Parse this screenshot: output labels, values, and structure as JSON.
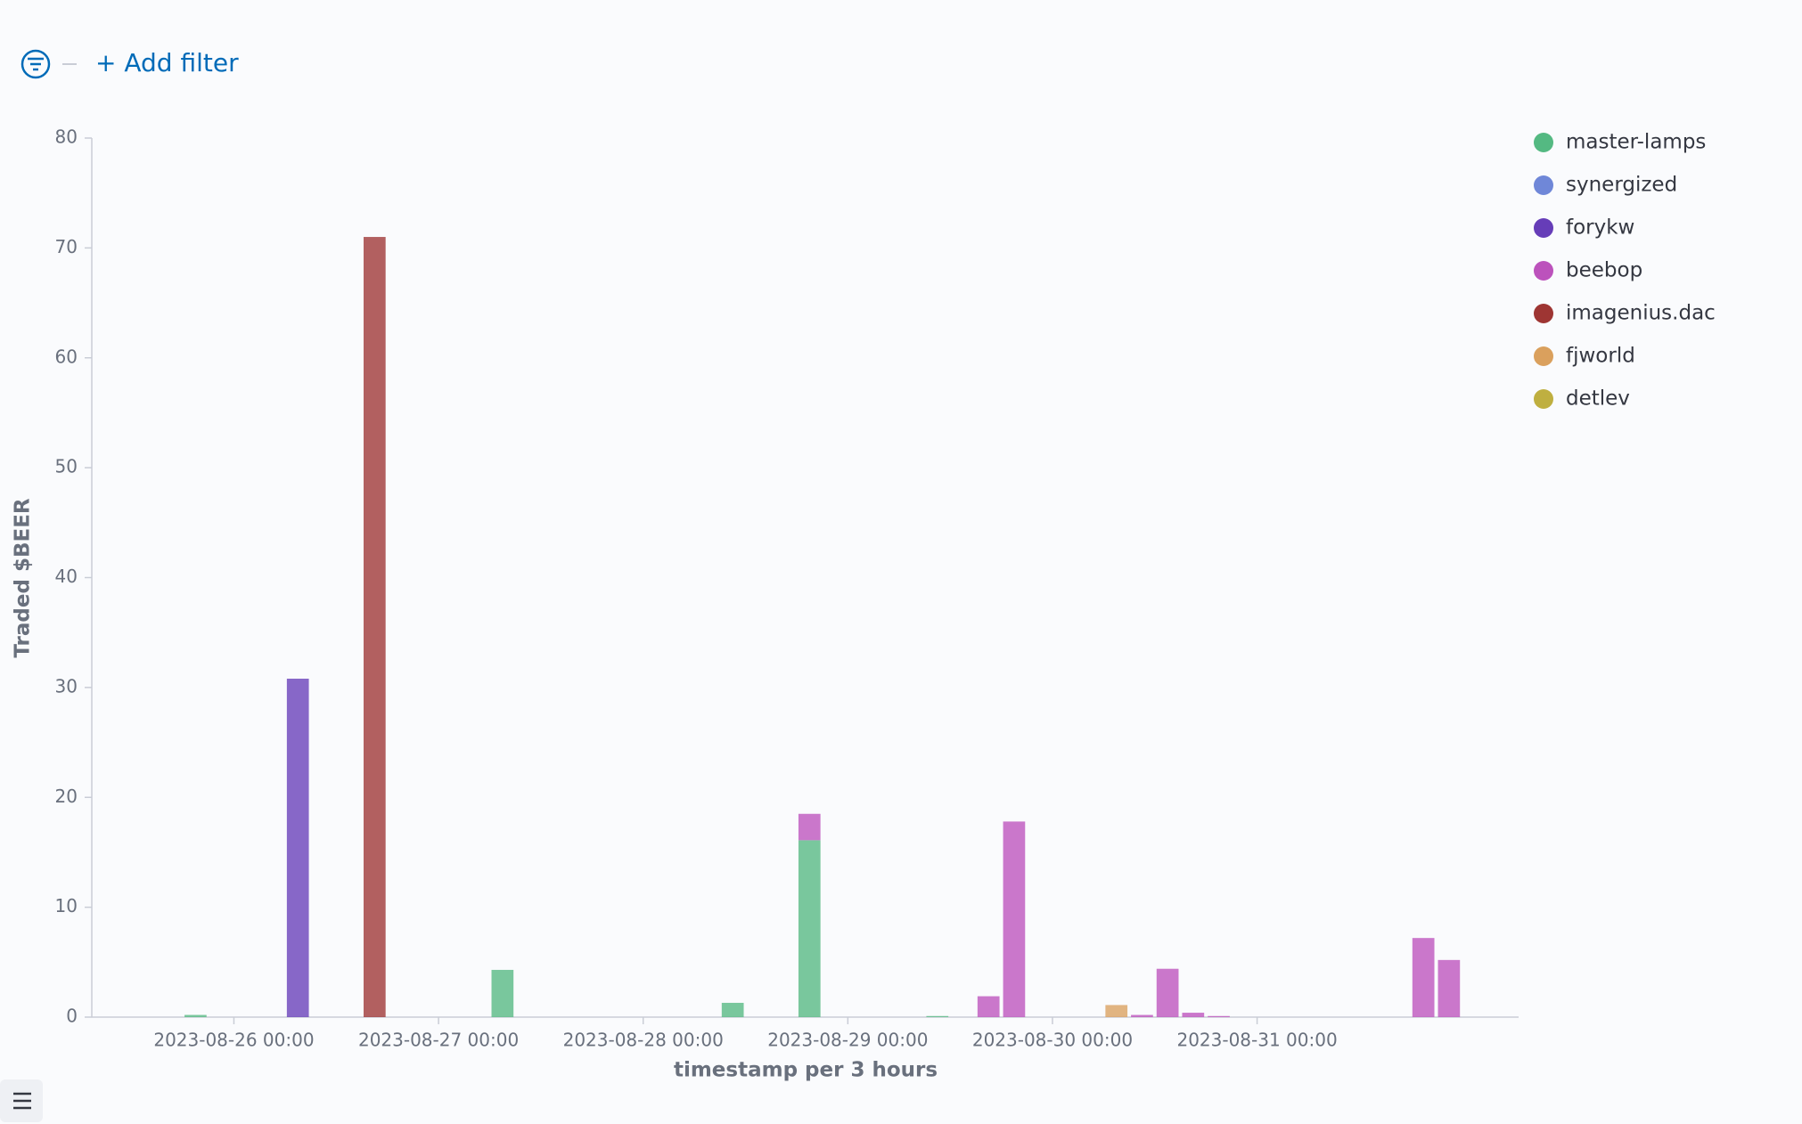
{
  "filter_bar": {
    "add_filter": "+ Add filter"
  },
  "chart_data": {
    "type": "bar",
    "stacked": true,
    "x_label": "timestamp per 3 hours",
    "y_label": "Traded $BEER",
    "x": [
      "2023-08-25 18:00",
      "2023-08-26 06:00",
      "2023-08-26 15:00",
      "2023-08-27 06:00",
      "2023-08-28 09:00",
      "2023-08-28 18:00",
      "2023-08-29 09:00",
      "2023-08-29 15:00",
      "2023-08-29 18:00",
      "2023-08-30 06:00",
      "2023-08-30 09:00",
      "2023-08-30 12:00",
      "2023-08-30 15:00",
      "2023-08-30 18:00",
      "2023-08-31 18:00",
      "2023-08-31 21:00"
    ],
    "series": [
      {
        "name": "master-lamps",
        "color": "#54b982",
        "values": [
          0.2,
          null,
          null,
          4.3,
          1.3,
          16.1,
          0.1,
          null,
          null,
          null,
          null,
          null,
          null,
          null,
          null,
          null
        ]
      },
      {
        "name": "synergized",
        "color": "#6f87d8",
        "values": [
          null,
          null,
          null,
          null,
          null,
          null,
          null,
          null,
          null,
          null,
          null,
          null,
          null,
          null,
          null,
          null
        ]
      },
      {
        "name": "forykw",
        "color": "#663db8",
        "values": [
          null,
          30.8,
          null,
          null,
          null,
          null,
          null,
          null,
          null,
          null,
          null,
          null,
          null,
          null,
          null,
          null
        ]
      },
      {
        "name": "beebop",
        "color": "#bc52bc",
        "values": [
          null,
          null,
          null,
          null,
          null,
          2.4,
          null,
          1.9,
          17.8,
          null,
          0.2,
          4.4,
          0.4,
          0.1,
          7.2,
          5.2
        ]
      },
      {
        "name": "imagenius.dac",
        "color": "#9e3533",
        "values": [
          null,
          null,
          71,
          null,
          null,
          null,
          null,
          null,
          null,
          null,
          null,
          null,
          null,
          null,
          null,
          null
        ]
      },
      {
        "name": "fjworld",
        "color": "#daa05d",
        "values": [
          null,
          null,
          null,
          null,
          null,
          null,
          null,
          null,
          null,
          1.1,
          null,
          null,
          null,
          null,
          null,
          null
        ]
      },
      {
        "name": "detlev",
        "color": "#bfaf40",
        "values": [
          null,
          null,
          null,
          null,
          null,
          null,
          null,
          null,
          null,
          null,
          null,
          null,
          null,
          null,
          null,
          null
        ]
      }
    ],
    "interval_hours": 3,
    "xlim": [
      "2023-08-25 07:20",
      "2023-09-01 06:40"
    ],
    "xticks": [
      "2023-08-26 00:00",
      "2023-08-27 00:00",
      "2023-08-28 00:00",
      "2023-08-29 00:00",
      "2023-08-30 00:00",
      "2023-08-31 00:00"
    ],
    "ylim": [
      0,
      80
    ],
    "yticks": [
      0,
      10,
      20,
      30,
      40,
      50,
      60,
      70,
      80
    ],
    "grid": false,
    "legend_position": "right"
  }
}
